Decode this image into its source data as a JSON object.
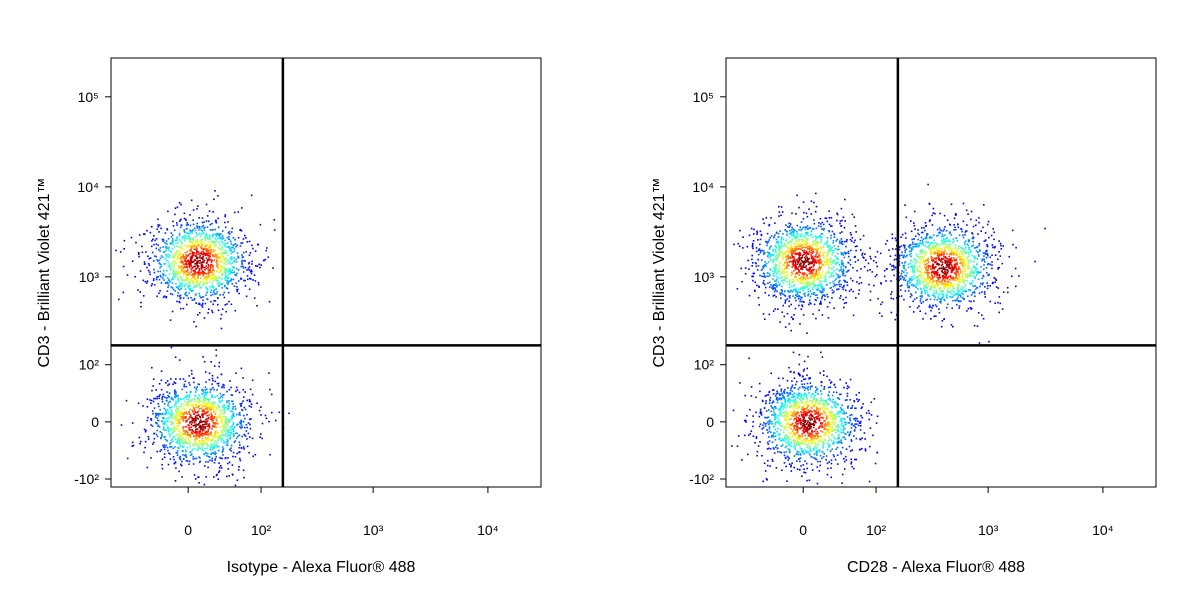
{
  "chart_data": [
    {
      "type": "density-scatter",
      "scale": "biexponential",
      "x_label": "Isotype - Alexa Fluor® 488",
      "y_label": "CD3 - Brilliant Violet 421™",
      "xlim": [
        -110,
        29000
      ],
      "ylim": [
        -125,
        270000
      ],
      "xticks": [
        0,
        {
          "value": 100,
          "label": "10²"
        },
        {
          "value": 1000,
          "label": "10³"
        },
        {
          "value": 10000,
          "label": "10⁴"
        }
      ],
      "yticks": [
        {
          "value": -100,
          "label": "-10²"
        },
        0,
        {
          "value": 100,
          "label": "10²"
        },
        {
          "value": 1000,
          "label": "10³"
        },
        {
          "value": 10000,
          "label": "10⁴"
        },
        {
          "value": 100000,
          "label": "10⁵"
        }
      ],
      "gates": {
        "x": 160,
        "y": 170
      },
      "populations": [
        {
          "x": 10,
          "y": 1500
        },
        {
          "x": 10,
          "y": 0
        }
      ]
    },
    {
      "type": "density-scatter",
      "scale": "biexponential",
      "x_label": "CD28 - Alexa Fluor® 488",
      "y_label": "CD3 - Brilliant Violet 421™",
      "xlim": [
        -110,
        29000
      ],
      "ylim": [
        -125,
        270000
      ],
      "xticks": [
        0,
        {
          "value": 100,
          "label": "10²"
        },
        {
          "value": 1000,
          "label": "10³"
        },
        {
          "value": 10000,
          "label": "10⁴"
        }
      ],
      "yticks": [
        {
          "value": -100,
          "label": "-10²"
        },
        0,
        {
          "value": 100,
          "label": "10²"
        },
        {
          "value": 1000,
          "label": "10³"
        },
        {
          "value": 10000,
          "label": "10⁴"
        },
        {
          "value": 100000,
          "label": "10⁵"
        }
      ],
      "gates": {
        "x": 160,
        "y": 170
      },
      "populations": [
        {
          "x": 0,
          "y": 1500
        },
        {
          "x": 400,
          "y": 1300
        },
        {
          "x": 5,
          "y": 0
        }
      ]
    }
  ]
}
